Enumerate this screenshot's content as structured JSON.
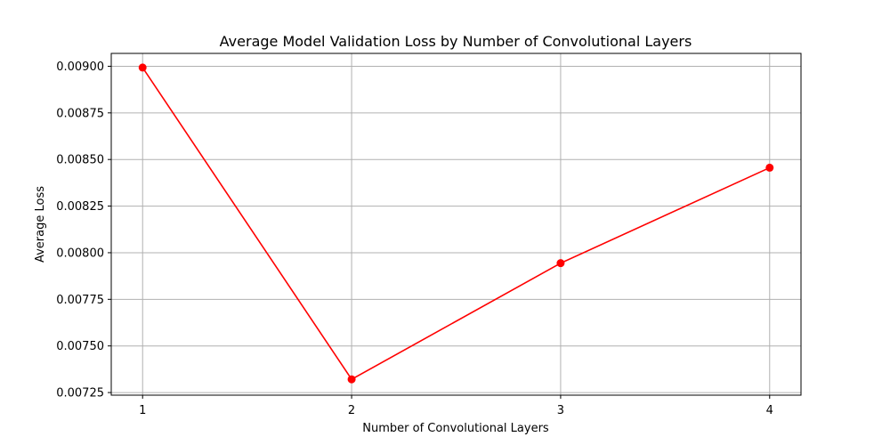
{
  "chart_data": {
    "type": "line",
    "title": "Average Model Validation Loss by Number of Convolutional Layers",
    "xlabel": "Number of Convolutional Layers",
    "ylabel": "Average Loss",
    "x": [
      1,
      2,
      3,
      4
    ],
    "x_ticks": [
      "1",
      "2",
      "3",
      "4"
    ],
    "y_ticks": [
      0.00725,
      0.0075,
      0.00775,
      0.008,
      0.00825,
      0.0085,
      0.00875,
      0.009
    ],
    "y_tick_labels": [
      "0.00725",
      "0.00750",
      "0.00775",
      "0.00800",
      "0.00825",
      "0.00850",
      "0.00875",
      "0.00900"
    ],
    "xlim": [
      0.85,
      4.15
    ],
    "ylim": [
      0.007236,
      0.009069
    ],
    "grid": true,
    "series": [
      {
        "values": [
          0.008993,
          0.007321,
          0.007944,
          0.008456
        ],
        "color": "#ff0000",
        "marker": "circle"
      }
    ]
  }
}
